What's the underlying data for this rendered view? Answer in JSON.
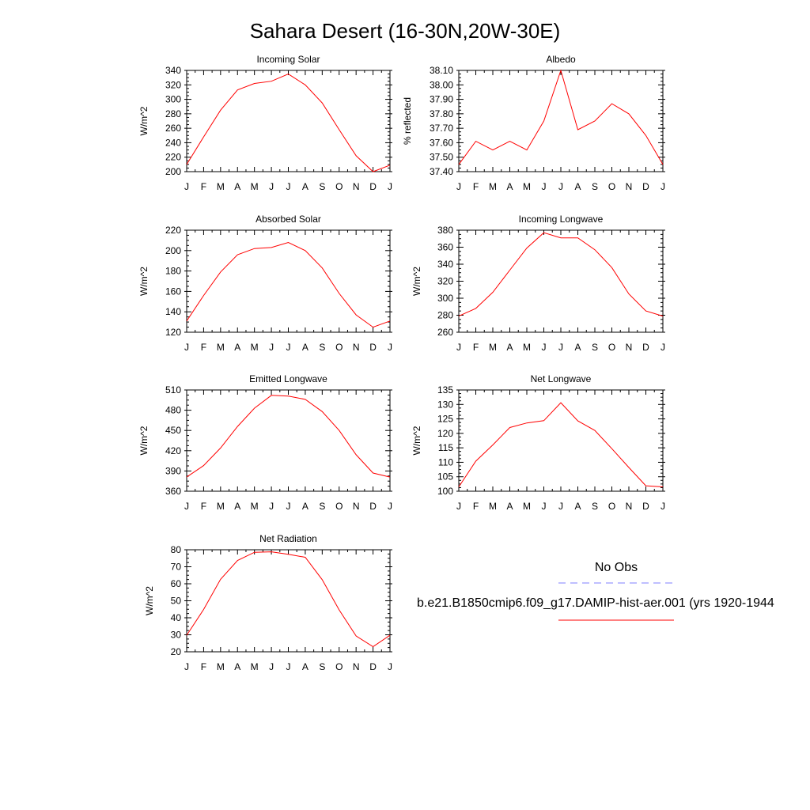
{
  "title": "Sahara Desert (16-30N,20W-30E)",
  "colors": {
    "model": "#ff0000",
    "obs": "#7f7fff",
    "axis": "#000000"
  },
  "legend": {
    "obs_label": "No Obs",
    "model_label": "b.e21.B1850cmip6.f09_g17.DAMIP-hist-aer.001 (yrs 1920-1944"
  },
  "chart_data": [
    {
      "type": "line",
      "title": "Incoming Solar",
      "ylabel": "W/m^2",
      "x": [
        "J",
        "F",
        "M",
        "A",
        "M",
        "J",
        "J",
        "A",
        "S",
        "O",
        "N",
        "D",
        "J"
      ],
      "ylim": [
        200,
        340
      ],
      "yticks": [
        "340",
        "320",
        "300",
        "280",
        "260",
        "240",
        "220",
        "200"
      ],
      "series": [
        {
          "values": [
            210,
            248,
            285,
            313,
            322,
            325,
            335,
            320,
            295,
            258,
            222,
            200,
            209
          ]
        }
      ]
    },
    {
      "type": "line",
      "title": "Albedo",
      "ylabel": "% reflected",
      "x": [
        "J",
        "F",
        "M",
        "A",
        "M",
        "J",
        "J",
        "A",
        "S",
        "O",
        "N",
        "D",
        "J"
      ],
      "ylim": [
        37.4,
        38.1
      ],
      "yticks": [
        "38.10",
        "38.00",
        "37.90",
        "37.80",
        "37.70",
        "37.60",
        "37.50",
        "37.40"
      ],
      "series": [
        {
          "values": [
            37.45,
            37.61,
            37.55,
            37.61,
            37.55,
            37.75,
            38.1,
            37.69,
            37.75,
            37.87,
            37.8,
            37.65,
            37.45
          ]
        }
      ]
    },
    {
      "type": "line",
      "title": "Absorbed Solar",
      "ylabel": "W/m^2",
      "x": [
        "J",
        "F",
        "M",
        "A",
        "M",
        "J",
        "J",
        "A",
        "S",
        "O",
        "N",
        "D",
        "J"
      ],
      "ylim": [
        120,
        220
      ],
      "yticks": [
        "220",
        "200",
        "180",
        "160",
        "140",
        "120"
      ],
      "series": [
        {
          "values": [
            131,
            156,
            179,
            196,
            202,
            203,
            208,
            200,
            183,
            158,
            137,
            125,
            131
          ]
        }
      ]
    },
    {
      "type": "line",
      "title": "Incoming Longwave",
      "ylabel": "W/m^2",
      "x": [
        "J",
        "F",
        "M",
        "A",
        "M",
        "J",
        "J",
        "A",
        "S",
        "O",
        "N",
        "D",
        "J"
      ],
      "ylim": [
        260,
        380
      ],
      "yticks": [
        "380",
        "360",
        "340",
        "320",
        "300",
        "280",
        "260"
      ],
      "series": [
        {
          "values": [
            279,
            288,
            307,
            333,
            359,
            377,
            371,
            371,
            357,
            336,
            305,
            285,
            279
          ]
        }
      ]
    },
    {
      "type": "line",
      "title": "Emitted Longwave",
      "ylabel": "W/m^2",
      "x": [
        "J",
        "F",
        "M",
        "A",
        "M",
        "J",
        "J",
        "A",
        "S",
        "O",
        "N",
        "D",
        "J"
      ],
      "ylim": [
        360,
        510
      ],
      "yticks": [
        "510",
        "480",
        "450",
        "420",
        "390",
        "360"
      ],
      "series": [
        {
          "values": [
            381,
            398,
            424,
            456,
            483,
            502,
            501,
            496,
            478,
            450,
            414,
            387,
            381
          ]
        }
      ]
    },
    {
      "type": "line",
      "title": "Net Longwave",
      "ylabel": "W/m^2",
      "x": [
        "J",
        "F",
        "M",
        "A",
        "M",
        "J",
        "J",
        "A",
        "S",
        "O",
        "N",
        "D",
        "J"
      ],
      "ylim": [
        100,
        135
      ],
      "yticks": [
        "135",
        "130",
        "125",
        "120",
        "115",
        "110",
        "105",
        "100"
      ],
      "series": [
        {
          "values": [
            101.5,
            110.4,
            116.0,
            122.0,
            123.6,
            124.4,
            130.6,
            124.3,
            121.0,
            114.7,
            108.2,
            101.9,
            101.5
          ]
        }
      ]
    },
    {
      "type": "line",
      "title": "Net Radiation",
      "ylabel": "W/m^2",
      "x": [
        "J",
        "F",
        "M",
        "A",
        "M",
        "J",
        "J",
        "A",
        "S",
        "O",
        "N",
        "D",
        "J"
      ],
      "ylim": [
        20,
        80
      ],
      "yticks": [
        "80",
        "70",
        "60",
        "50",
        "40",
        "30",
        "20"
      ],
      "series": [
        {
          "values": [
            29.7,
            44.9,
            62.6,
            73.7,
            78.5,
            78.8,
            77.3,
            75.6,
            62.4,
            44.6,
            29.3,
            23.0,
            29.7
          ]
        }
      ]
    }
  ]
}
